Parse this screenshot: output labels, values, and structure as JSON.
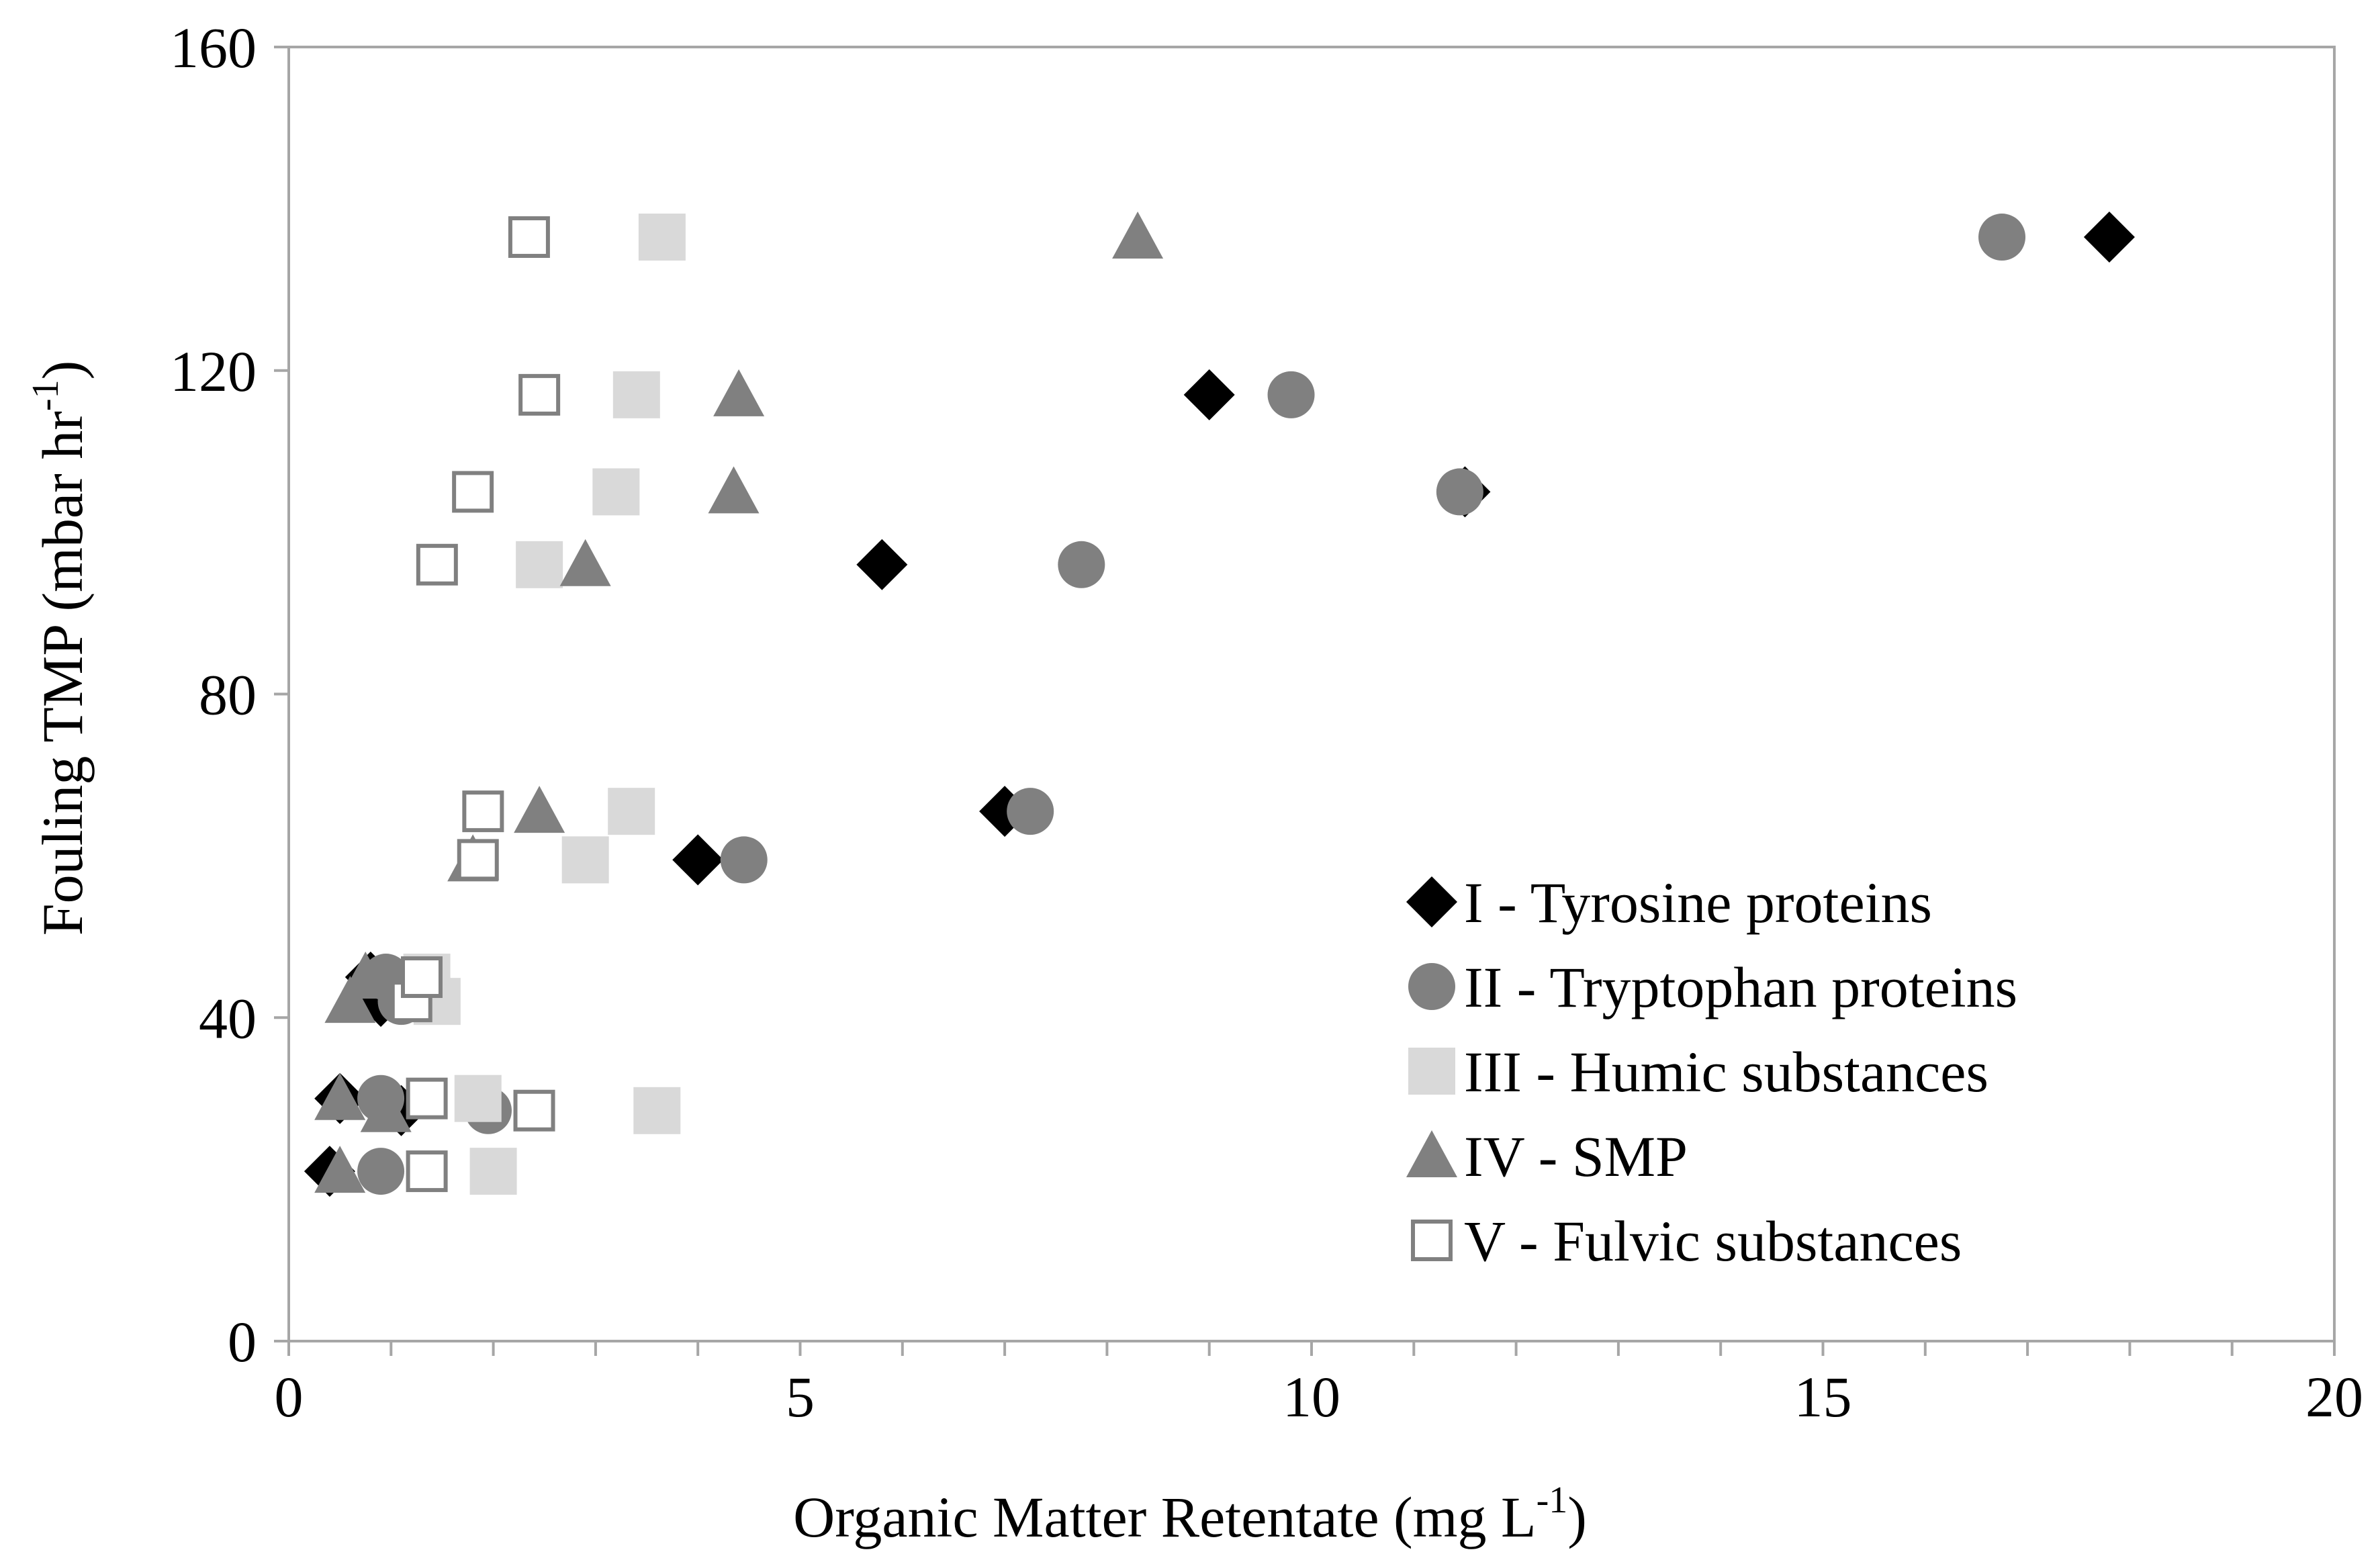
{
  "chart_data": {
    "type": "scatter",
    "title": "",
    "xlabel": "Organic Matter Retentate (mg L",
    "xlabel_sup": "-1",
    "xlabel_end": ")",
    "ylabel": "Fouling TMP (mbar hr",
    "ylabel_sup": "-1",
    "ylabel_end": ")",
    "xlim": [
      0,
      20
    ],
    "ylim": [
      0,
      160
    ],
    "x_ticks": [
      0,
      5,
      10,
      15,
      20
    ],
    "y_ticks": [
      0,
      40,
      80,
      120,
      160
    ],
    "x_tick_labels": [
      "0",
      "5",
      "10",
      "15",
      "20"
    ],
    "y_tick_labels": [
      "0",
      "40",
      "80",
      "120",
      "160"
    ],
    "x_minor_step": 1,
    "grid": false,
    "legend_position": "bottom-right",
    "series": [
      {
        "name": "I - Tyrosine proteins",
        "marker": "diamond-filled",
        "color": "#000000",
        "points": [
          {
            "x": 0.4,
            "y": 21
          },
          {
            "x": 0.5,
            "y": 30
          },
          {
            "x": 1.1,
            "y": 28.5
          },
          {
            "x": 0.9,
            "y": 42
          },
          {
            "x": 0.8,
            "y": 45
          },
          {
            "x": 4.0,
            "y": 59.5
          },
          {
            "x": 7.0,
            "y": 65.5
          },
          {
            "x": 5.8,
            "y": 96
          },
          {
            "x": 11.5,
            "y": 105
          },
          {
            "x": 9.0,
            "y": 117
          },
          {
            "x": 17.8,
            "y": 136.5
          }
        ]
      },
      {
        "name": "II - Tryptophan proteins",
        "marker": "circle-filled",
        "color": "#808080",
        "points": [
          {
            "x": 0.9,
            "y": 21
          },
          {
            "x": 0.9,
            "y": 30
          },
          {
            "x": 1.95,
            "y": 28.5
          },
          {
            "x": 1.1,
            "y": 42
          },
          {
            "x": 0.95,
            "y": 45
          },
          {
            "x": 4.45,
            "y": 59.5
          },
          {
            "x": 7.25,
            "y": 65.5
          },
          {
            "x": 7.75,
            "y": 96
          },
          {
            "x": 11.45,
            "y": 105
          },
          {
            "x": 9.8,
            "y": 117
          },
          {
            "x": 16.75,
            "y": 136.5
          }
        ]
      },
      {
        "name": "III - Humic substances",
        "marker": "square-filled",
        "color": "#d9d9d9",
        "points": [
          {
            "x": 2.0,
            "y": 21
          },
          {
            "x": 1.85,
            "y": 30
          },
          {
            "x": 3.6,
            "y": 28.5
          },
          {
            "x": 1.45,
            "y": 42
          },
          {
            "x": 1.35,
            "y": 45
          },
          {
            "x": 2.9,
            "y": 59.5
          },
          {
            "x": 3.35,
            "y": 65.5
          },
          {
            "x": 2.45,
            "y": 96
          },
          {
            "x": 3.2,
            "y": 105
          },
          {
            "x": 3.4,
            "y": 117
          },
          {
            "x": 3.65,
            "y": 136.5
          }
        ]
      },
      {
        "name": "IV - SMP",
        "marker": "triangle-filled",
        "color": "#808080",
        "points": [
          {
            "x": 0.5,
            "y": 21
          },
          {
            "x": 0.5,
            "y": 30
          },
          {
            "x": 0.95,
            "y": 28.5
          },
          {
            "x": 0.6,
            "y": 42
          },
          {
            "x": 0.75,
            "y": 45
          },
          {
            "x": 1.8,
            "y": 59.5
          },
          {
            "x": 2.45,
            "y": 65.5
          },
          {
            "x": 2.9,
            "y": 96
          },
          {
            "x": 4.35,
            "y": 105
          },
          {
            "x": 4.4,
            "y": 117
          },
          {
            "x": 8.3,
            "y": 136.5
          }
        ]
      },
      {
        "name": "V - Fulvic substances",
        "marker": "square-open",
        "color": "#808080",
        "points": [
          {
            "x": 1.35,
            "y": 21
          },
          {
            "x": 1.35,
            "y": 30
          },
          {
            "x": 2.4,
            "y": 28.5
          },
          {
            "x": 1.2,
            "y": 42
          },
          {
            "x": 1.3,
            "y": 45
          },
          {
            "x": 1.85,
            "y": 59.5
          },
          {
            "x": 1.9,
            "y": 65.5
          },
          {
            "x": 1.45,
            "y": 96
          },
          {
            "x": 1.8,
            "y": 105
          },
          {
            "x": 2.45,
            "y": 117
          },
          {
            "x": 2.35,
            "y": 136.5
          }
        ]
      }
    ]
  }
}
